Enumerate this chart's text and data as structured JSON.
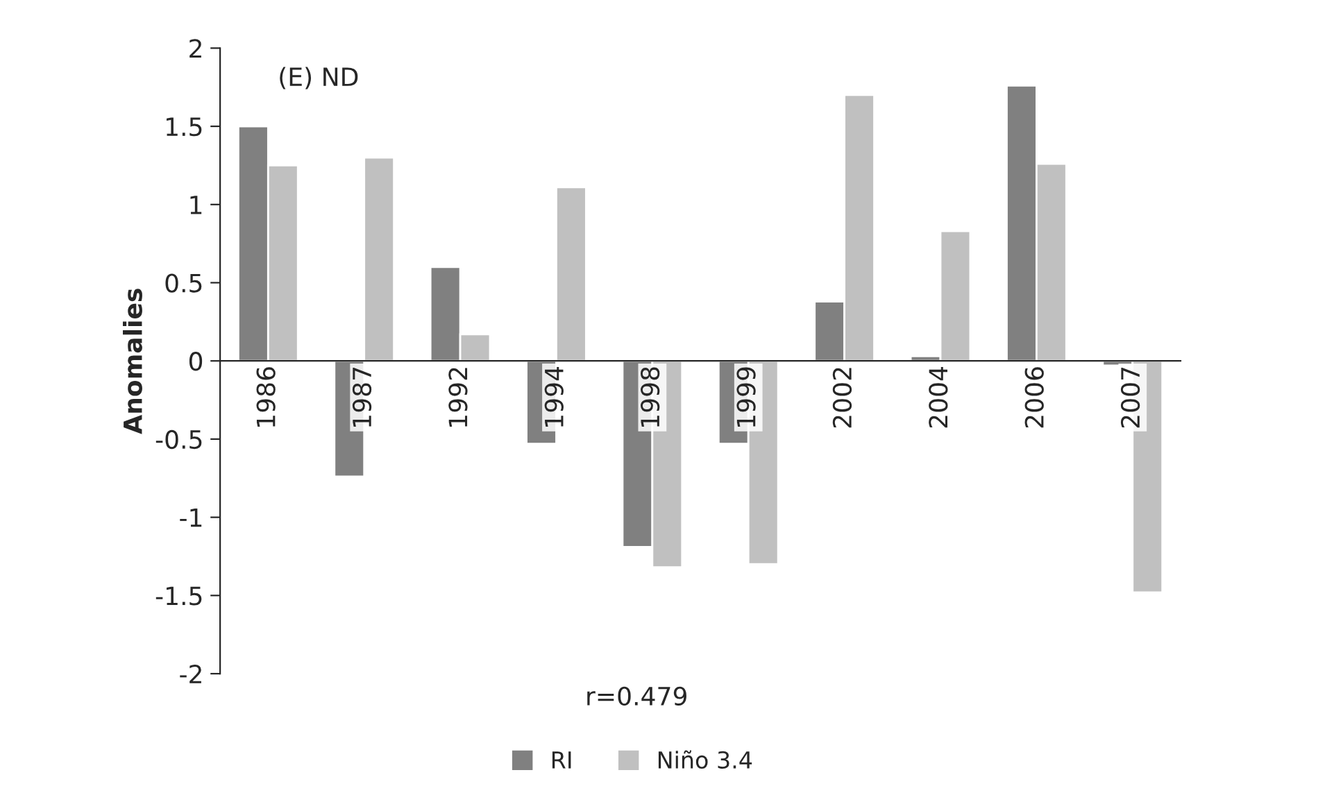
{
  "chart_data": {
    "type": "bar",
    "title": "(E) ND",
    "ylabel": "Anomalies",
    "categories": [
      "1986",
      "1987",
      "1992",
      "1994",
      "1998",
      "1999",
      "2002",
      "2004",
      "2006",
      "2007"
    ],
    "series": [
      {
        "name": "RI",
        "color": "#808080",
        "values": [
          1.5,
          -0.74,
          0.6,
          -0.53,
          -1.19,
          -0.53,
          0.38,
          0.03,
          1.76,
          -0.03
        ]
      },
      {
        "name": "Niño 3.4",
        "color": "#c0c0c0",
        "values": [
          1.25,
          1.3,
          0.17,
          1.11,
          -1.32,
          -1.3,
          1.7,
          0.83,
          1.26,
          -1.48
        ]
      }
    ],
    "ylim": [
      -2,
      2
    ],
    "yticks": [
      -2,
      -1.5,
      -1,
      -0.5,
      0,
      0.5,
      1,
      1.5,
      2
    ],
    "annotations": [
      "r=0.479"
    ],
    "legend": "bottom",
    "grid": false
  }
}
